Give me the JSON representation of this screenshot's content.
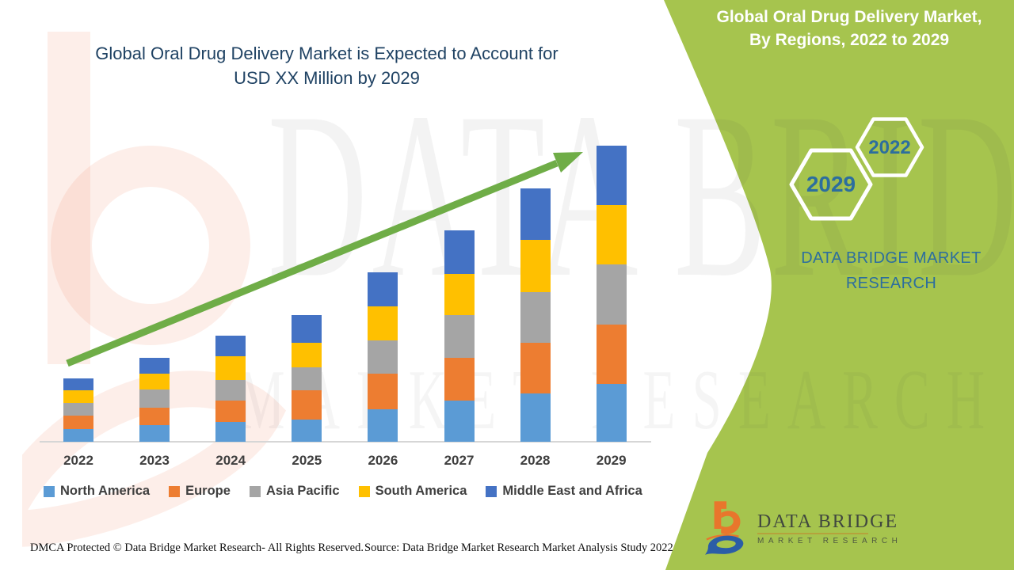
{
  "ribbon": {
    "line1": "Global Oral Drug Delivery Market,",
    "line2": "By Regions, 2022 to 2029"
  },
  "chart": {
    "title_line1": "Global Oral Drug Delivery Market is Expected to Account for",
    "title_line2": "USD XX Million by 2029"
  },
  "chart_data": {
    "type": "bar",
    "stacked": true,
    "title": "Global Oral Drug Delivery Market is Expected to Account for USD XX Million by 2029",
    "xlabel": "",
    "ylabel": "",
    "value_axis_labels_visible": false,
    "units": "relative market size (actual values masked as 'USD XX Million' on chart)",
    "legend_position": "bottom",
    "trend_arrow": true,
    "categories": [
      "2022",
      "2023",
      "2024",
      "2025",
      "2026",
      "2027",
      "2028",
      "2029"
    ],
    "series": [
      {
        "name": "North America",
        "color": "#5B9BD5",
        "values": [
          16,
          21,
          25,
          28,
          41,
          52,
          61,
          73
        ]
      },
      {
        "name": "Europe",
        "color": "#ED7D31",
        "values": [
          17,
          22,
          27,
          37,
          45,
          54,
          64,
          75
        ]
      },
      {
        "name": "Asia Pacific",
        "color": "#A5A5A5",
        "values": [
          16,
          23,
          26,
          29,
          42,
          54,
          64,
          76
        ]
      },
      {
        "name": "South America",
        "color": "#FFC000",
        "values": [
          16,
          20,
          30,
          31,
          43,
          52,
          66,
          75
        ]
      },
      {
        "name": "Middle East and Africa",
        "color": "#4472C4",
        "values": [
          15,
          20,
          26,
          35,
          43,
          55,
          65,
          75
        ]
      }
    ],
    "stack_totals": [
      80,
      106,
      134,
      160,
      214,
      267,
      320,
      374
    ]
  },
  "side_panel": {
    "hex_large": "2029",
    "hex_small": "2022",
    "brand_line1": "DATA BRIDGE MARKET",
    "brand_line2": "RESEARCH"
  },
  "watermark": {
    "line1": "DATA BRIDGE",
    "line2": "MARKET RESEARCH"
  },
  "footer": {
    "dmca": "DMCA Protected © Data Bridge Market Research- All Rights Reserved.",
    "source": "Source: Data Bridge Market Research Market Analysis Study 2022"
  },
  "logo": {
    "title": "DATA BRIDGE",
    "subtitle": "MARKET RESEARCH"
  },
  "colors": {
    "ribbon_green": "#A6C44E",
    "arrow_green": "#6FAD47",
    "title_blue": "#1F4263",
    "panel_blue": "#2C6E9E",
    "axis_line": "#D6D6D6",
    "text_gray": "#3F3F3F",
    "logo_orange": "#E8762C",
    "logo_blue": "#2B5DA7",
    "logo_text": "#41483F",
    "logo_gold": "#B5A23C"
  }
}
